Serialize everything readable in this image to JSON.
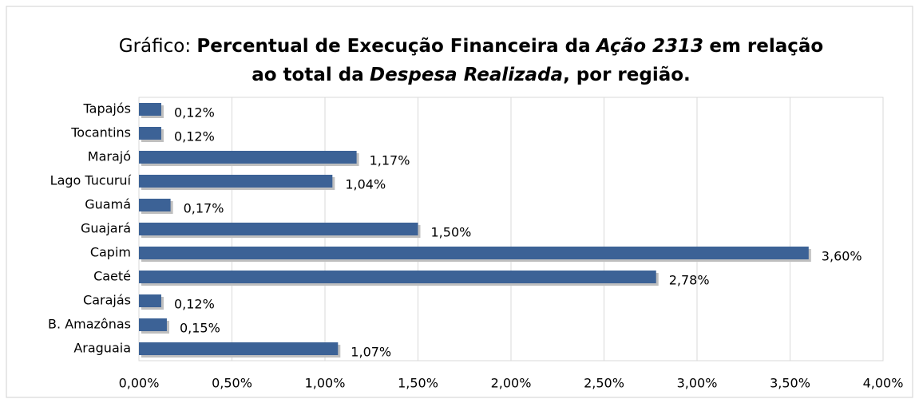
{
  "chart_data": {
    "type": "bar",
    "orientation": "horizontal",
    "title": [
      "Gráfico:",
      "Percentual de Execução Financeira da",
      "Ação 2313",
      "em relação",
      "ao total da",
      "Despesa Realizada",
      ", por região."
    ],
    "categories": [
      "Tapajós",
      "Tocantins",
      "Marajó",
      "Lago Tucuruí",
      "Guamá",
      "Guajará",
      "Capim",
      "Caeté",
      "Carajás",
      "B. Amazônas",
      "Araguaia"
    ],
    "values": [
      0.12,
      0.12,
      1.17,
      1.04,
      0.17,
      1.5,
      3.6,
      2.78,
      0.12,
      0.15,
      1.07
    ],
    "value_labels": [
      "0,12%",
      "0,12%",
      "1,17%",
      "1,04%",
      "0,17%",
      "1,50%",
      "3,60%",
      "2,78%",
      "0,12%",
      "0,15%",
      "1,07%"
    ],
    "color": "#3c6296",
    "xlim": [
      0,
      4
    ],
    "xticks": [
      {
        "value": 0,
        "label": "0,00%"
      },
      {
        "value": 0.5,
        "label": "0,50%"
      },
      {
        "value": 1,
        "label": "1,00%"
      },
      {
        "value": 1.5,
        "label": "1,50%"
      },
      {
        "value": 2,
        "label": "2,00%"
      },
      {
        "value": 2.5,
        "label": "2,50%"
      },
      {
        "value": 3,
        "label": "3,00%"
      },
      {
        "value": 3.5,
        "label": "3,50%"
      },
      {
        "value": 4,
        "label": "4,00%"
      }
    ],
    "grid": true
  }
}
